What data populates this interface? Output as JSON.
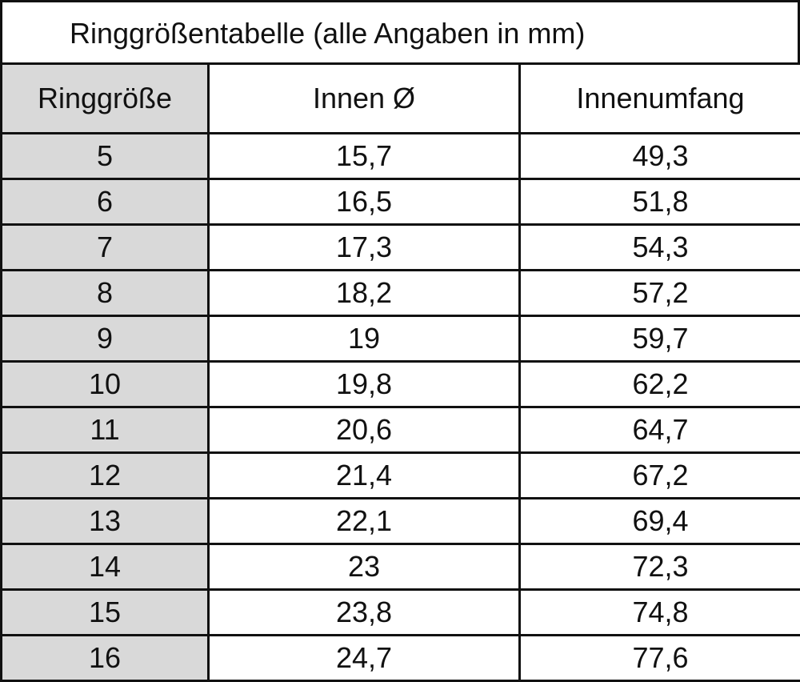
{
  "table": {
    "title": "Ringgrößentabelle (alle Angaben in mm)",
    "header": [
      "Ringgröße",
      "Innen Ø",
      "Innenumfang"
    ],
    "rows": [
      [
        "5",
        "15,7",
        "49,3"
      ],
      [
        "6",
        "16,5",
        "51,8"
      ],
      [
        "7",
        "17,3",
        "54,3"
      ],
      [
        "8",
        "18,2",
        "57,2"
      ],
      [
        "9",
        "19",
        "59,7"
      ],
      [
        "10",
        "19,8",
        "62,2"
      ],
      [
        "11",
        "20,6",
        "64,7"
      ],
      [
        "12",
        "21,4",
        "67,2"
      ],
      [
        "13",
        "22,1",
        "69,4"
      ],
      [
        "14",
        "23",
        "72,3"
      ],
      [
        "15",
        "23,8",
        "74,8"
      ],
      [
        "16",
        "24,7",
        "77,6"
      ]
    ]
  }
}
